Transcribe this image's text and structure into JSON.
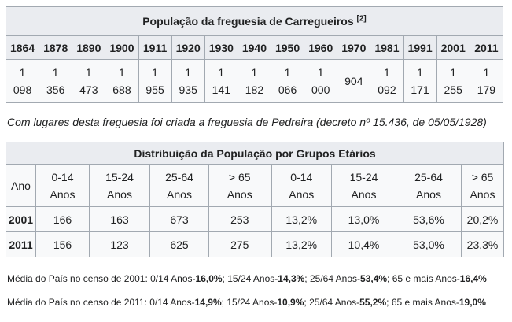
{
  "population_table": {
    "title": "População da freguesia de Carregueiros",
    "ref": "[2]",
    "years": [
      "1864",
      "1878",
      "1890",
      "1900",
      "1911",
      "1920",
      "1930",
      "1940",
      "1950",
      "1960",
      "1970",
      "1981",
      "1991",
      "2001",
      "2011"
    ],
    "values": [
      {
        "top": "1",
        "bottom": "098"
      },
      {
        "top": "1",
        "bottom": "356"
      },
      {
        "top": "1",
        "bottom": "473"
      },
      {
        "top": "1",
        "bottom": "688"
      },
      {
        "top": "1",
        "bottom": "955"
      },
      {
        "top": "1",
        "bottom": "935"
      },
      {
        "top": "1",
        "bottom": "141"
      },
      {
        "top": "1",
        "bottom": "182"
      },
      {
        "top": "1",
        "bottom": "066"
      },
      {
        "top": "1",
        "bottom": "000"
      },
      {
        "top": "904",
        "bottom": ""
      },
      {
        "top": "1",
        "bottom": "092"
      },
      {
        "top": "1",
        "bottom": "171"
      },
      {
        "top": "1",
        "bottom": "255"
      },
      {
        "top": "1",
        "bottom": "179"
      }
    ]
  },
  "note": "Com lugares desta freguesia foi criada a freguesia de Pedreira (decreto nº 15.436, de 05/05/1928)",
  "age_table": {
    "title": "Distribuição da População por Grupos Etários",
    "year_header": "Ano",
    "headers": [
      {
        "top": "0-14",
        "bottom": "Anos"
      },
      {
        "top": "15-24",
        "bottom": "Anos"
      },
      {
        "top": "25-64",
        "bottom": "Anos"
      },
      {
        "top": "> 65",
        "bottom": "Anos"
      },
      {
        "top": "0-14",
        "bottom": "Anos"
      },
      {
        "top": "15-24",
        "bottom": "Anos"
      },
      {
        "top": "25-64",
        "bottom": "Anos"
      },
      {
        "top": "> 65",
        "bottom": "Anos"
      }
    ],
    "rows": [
      {
        "year": "2001",
        "cells": [
          "166",
          "163",
          "673",
          "253",
          "13,2%",
          "13,0%",
          "53,6%",
          "20,2%"
        ]
      },
      {
        "year": "2011",
        "cells": [
          "156",
          "123",
          "625",
          "275",
          "13,2%",
          "10,4%",
          "53,0%",
          "23,3%"
        ]
      }
    ]
  },
  "averages": [
    {
      "prefix": "Média do País no censo de 2001: 0/14 Anos-",
      "parts": [
        {
          "v": "16,0%",
          "sep": "; 15/24 Anos-"
        },
        {
          "v": "14,3%",
          "sep": "; 25/64 Anos-"
        },
        {
          "v": "53,4%",
          "sep": "; 65 e mais Anos-"
        },
        {
          "v": "16,4%",
          "sep": ""
        }
      ]
    },
    {
      "prefix": "Média do País no censo de 2011: 0/14 Anos-",
      "parts": [
        {
          "v": "14,9%",
          "sep": "; 15/24 Anos-"
        },
        {
          "v": "10,9%",
          "sep": "; 25/64 Anos-"
        },
        {
          "v": "55,2%",
          "sep": "; 65 e mais Anos-"
        },
        {
          "v": "19,0%",
          "sep": ""
        }
      ]
    }
  ]
}
